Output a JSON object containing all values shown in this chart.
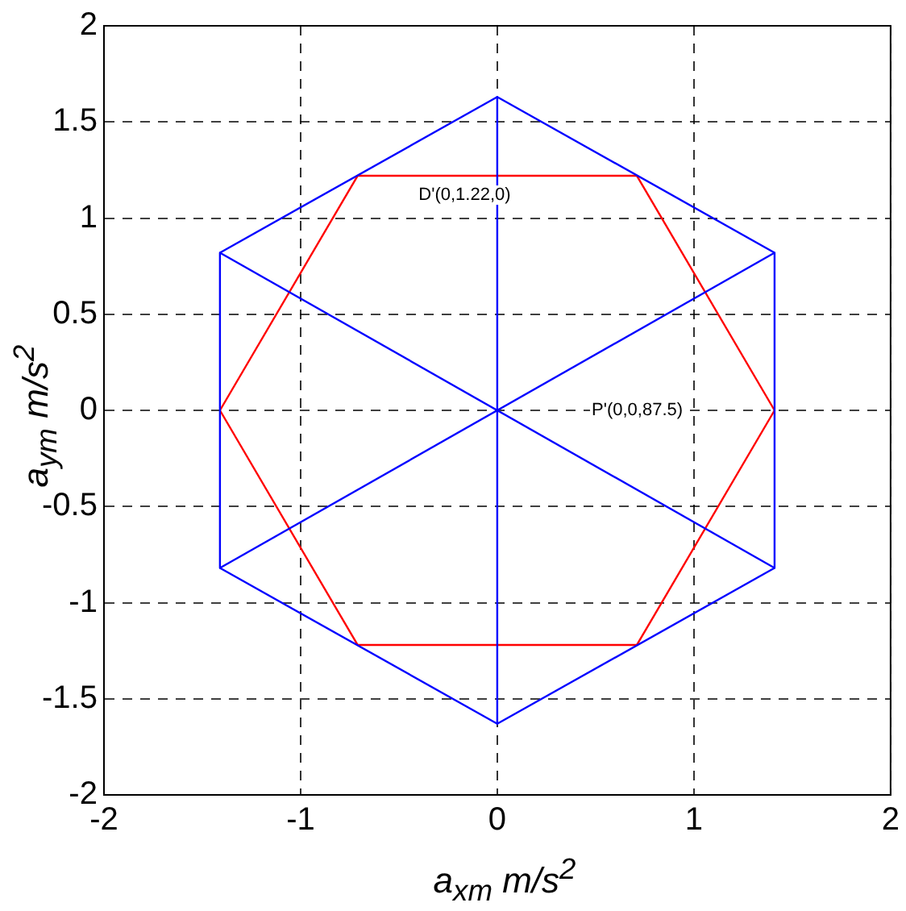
{
  "chart_data": {
    "type": "line",
    "xlabel": "a$_{xm}$ m/s$^{2}$",
    "ylabel": "a$_{ym}$ m/s$^{2}$",
    "series": [
      {
        "color": "#0000ff",
        "x": [
          -1.41,
          0,
          1.41
        ],
        "values": [
          0.82,
          1.63,
          0.82
        ]
      },
      {
        "color": "#0000ff",
        "x": [
          -1.41,
          0,
          1.41
        ],
        "values": [
          -0.82,
          -1.63,
          -0.82
        ]
      },
      {
        "color": "#0000ff",
        "x": [
          -1.41,
          -1.41
        ],
        "values": [
          0.82,
          -0.82
        ]
      },
      {
        "color": "#0000ff",
        "x": [
          1.41,
          1.41
        ],
        "values": [
          0.82,
          -0.82
        ]
      },
      {
        "color": "#0000ff",
        "x": [
          -1.41,
          1.41
        ],
        "values": [
          0.82,
          -0.82
        ]
      },
      {
        "color": "#0000ff",
        "x": [
          -1.41,
          1.41
        ],
        "values": [
          -0.82,
          0.82
        ]
      },
      {
        "color": "#0000ff",
        "x": [
          0,
          0
        ],
        "values": [
          1.63,
          -1.63
        ]
      },
      {
        "color": "#ff0000",
        "x": [
          -1.41,
          -0.71,
          0.71,
          1.41
        ],
        "values": [
          0,
          1.22,
          1.22,
          0
        ]
      },
      {
        "color": "#ff0000",
        "x": [
          -1.41,
          -0.71,
          0.71,
          1.41
        ],
        "values": [
          0,
          -1.22,
          -1.22,
          0
        ]
      }
    ],
    "annotations": [
      "D'(0,1.22,0)",
      "P'(0,0,87.5)"
    ],
    "xlim": [
      -2,
      2
    ],
    "xticks": [
      -2,
      -1,
      0,
      1,
      2
    ],
    "ylim": [
      -2,
      2
    ],
    "yticks": [
      -2,
      -1.5,
      -1,
      -0.5,
      0,
      0.5,
      1,
      1.5,
      2
    ],
    "grid": true,
    "line_style": "solid",
    "marker": "none",
    "legend": false
  }
}
